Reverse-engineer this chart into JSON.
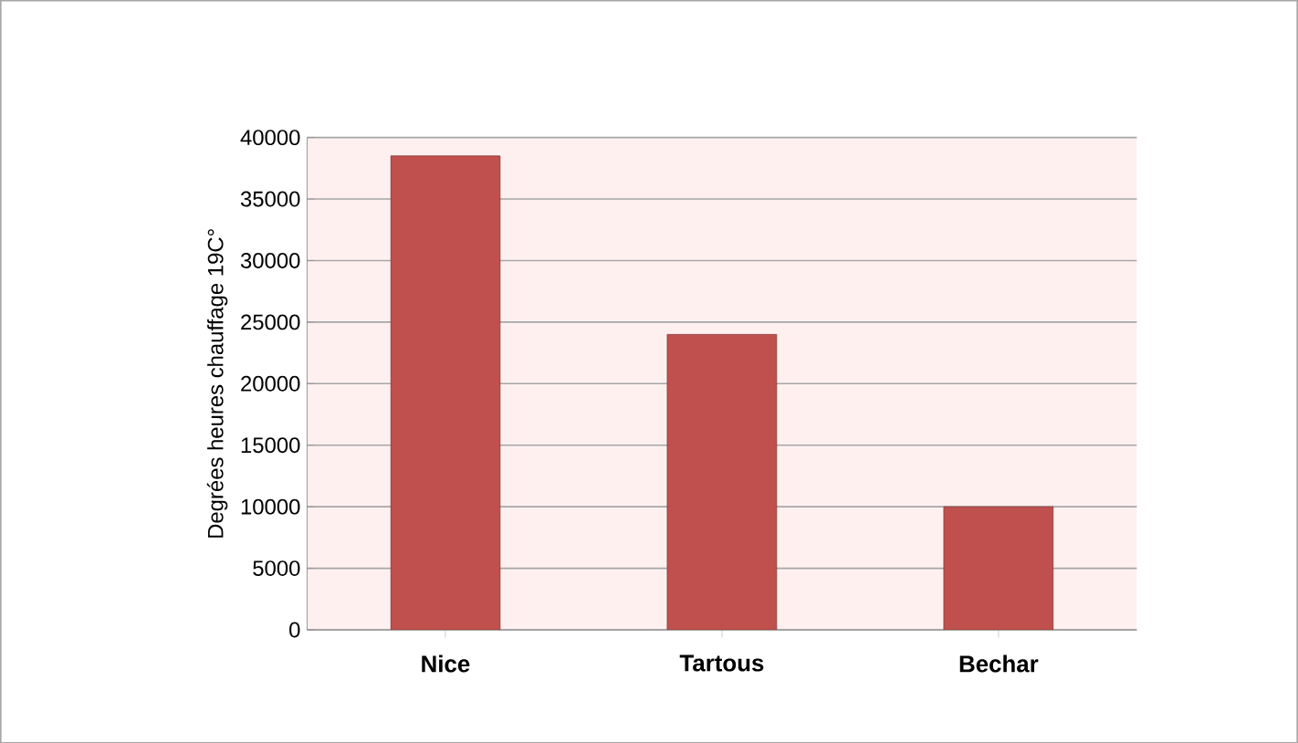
{
  "chart_data": {
    "type": "bar",
    "ylabel": "Degrées heures chauffage 19C°",
    "categories": [
      "Nice",
      "Tartous",
      "Bechar"
    ],
    "values": [
      38500,
      24000,
      10000
    ],
    "color": "#c0504d",
    "ylim": [
      0,
      40000
    ],
    "yticks": [
      0,
      5000,
      10000,
      15000,
      20000,
      25000,
      30000,
      35000,
      40000
    ],
    "grid": "y"
  }
}
